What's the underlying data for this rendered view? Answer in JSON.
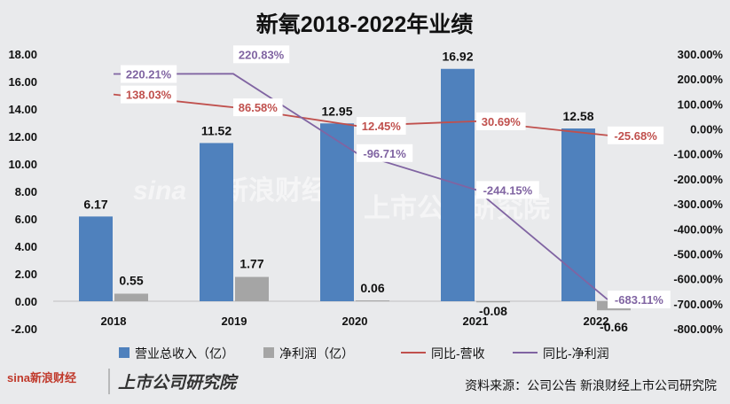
{
  "chart_data": {
    "type": "bar",
    "title": "新氧2018-2022年业绩",
    "categories": [
      "2018",
      "2019",
      "2020",
      "2021",
      "2022"
    ],
    "left_axis": {
      "range": [
        -2,
        18
      ],
      "ticks": [
        "-2.00",
        "0.00",
        "2.00",
        "4.00",
        "6.00",
        "8.00",
        "10.00",
        "12.00",
        "14.00",
        "16.00",
        "18.00"
      ]
    },
    "right_axis": {
      "range": [
        -800,
        300
      ],
      "ticks": [
        "-800.00%",
        "-700.00%",
        "-600.00%",
        "-500.00%",
        "-400.00%",
        "-300.00%",
        "-200.00%",
        "-100.00%",
        "0.00%",
        "100.00%",
        "200.00%",
        "300.00%"
      ]
    },
    "series": [
      {
        "name": "营业总收入（亿）",
        "kind": "bar",
        "axis": "left",
        "color": "#4f81bd",
        "values": [
          6.17,
          11.52,
          12.95,
          16.92,
          12.58
        ],
        "labels": [
          "6.17",
          "11.52",
          "12.95",
          "16.92",
          "12.58"
        ]
      },
      {
        "name": "净利润（亿）",
        "kind": "bar",
        "axis": "left",
        "color": "#a5a5a5",
        "values": [
          0.55,
          1.77,
          0.06,
          -0.08,
          -0.66
        ],
        "labels": [
          "0.55",
          "1.77",
          "0.06",
          "-0.08",
          "-0.66"
        ]
      },
      {
        "name": "同比-营收",
        "kind": "line",
        "axis": "right",
        "color": "#c0504d",
        "values": [
          138.03,
          86.58,
          12.45,
          30.69,
          -25.68
        ],
        "labels": [
          "138.03%",
          "86.58%",
          "12.45%",
          "30.69%",
          "-25.68%"
        ]
      },
      {
        "name": "同比-净利润",
        "kind": "line",
        "axis": "right",
        "color": "#8064a2",
        "values": [
          220.21,
          220.83,
          -96.71,
          -244.15,
          -683.11
        ],
        "labels": [
          "220.21%",
          "220.83%",
          "-96.71%",
          "-244.15%",
          "-683.11%"
        ]
      }
    ],
    "legend_position": "bottom",
    "grid": false
  },
  "watermark": {
    "logo": "sina",
    "text1": "新浪财经",
    "text2": "上市公司研究院"
  },
  "footer": {
    "brand_logo": "sina新浪财经",
    "brand_name": "上市公司研究院",
    "source": "资料来源：公司公告 新浪财经上市公司研究院"
  }
}
